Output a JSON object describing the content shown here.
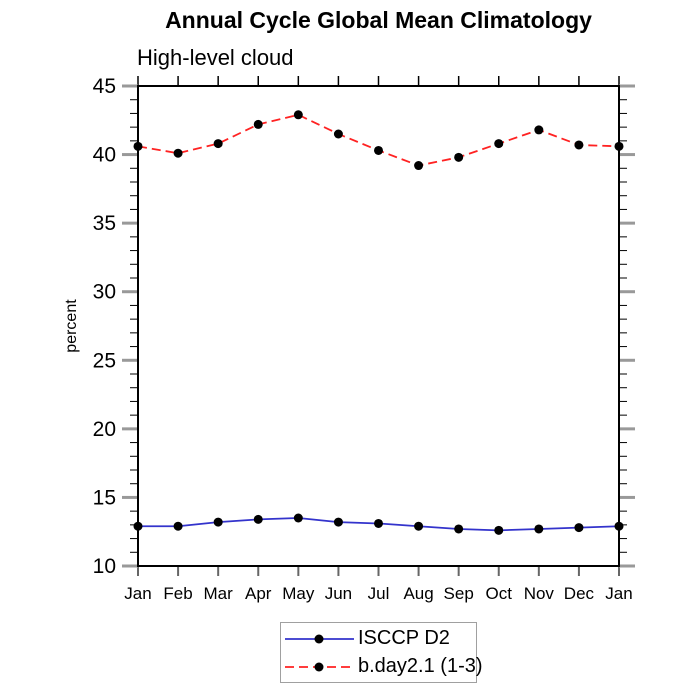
{
  "chart_data": {
    "type": "line",
    "title": "Annual Cycle Global Mean Climatology",
    "subtitle": "High-level cloud",
    "ylabel": "percent",
    "xlabel": "",
    "categories": [
      "Jan",
      "Feb",
      "Mar",
      "Apr",
      "May",
      "Jun",
      "Jul",
      "Aug",
      "Sep",
      "Oct",
      "Nov",
      "Dec",
      "Jan"
    ],
    "ylim": [
      10,
      45
    ],
    "y_major_ticks": [
      10,
      15,
      20,
      25,
      30,
      35,
      40,
      45
    ],
    "y_minor_step": 1,
    "grid": false,
    "legend_position": "bottom-center",
    "series": [
      {
        "name": "ISCCP D2",
        "color": "#3333cc",
        "line_style": "solid",
        "marker": "filled-circle",
        "marker_color": "#000000",
        "values": [
          12.9,
          12.9,
          13.2,
          13.4,
          13.5,
          13.2,
          13.1,
          12.9,
          12.7,
          12.6,
          12.7,
          12.8,
          12.9
        ]
      },
      {
        "name": "b.day2.1 (1-3)",
        "color": "#ff2222",
        "line_style": "dashed",
        "marker": "filled-circle",
        "marker_color": "#000000",
        "values": [
          40.6,
          40.1,
          40.8,
          42.2,
          42.9,
          41.5,
          40.3,
          39.2,
          39.8,
          40.8,
          41.8,
          40.7,
          40.6
        ]
      }
    ],
    "colors": {
      "frame": "#000000",
      "minor_tick": "#000000",
      "major_tick": "#999999",
      "month_tick_top": "#000000",
      "month_tick_bottom": "#666666",
      "background": "#ffffff"
    }
  }
}
